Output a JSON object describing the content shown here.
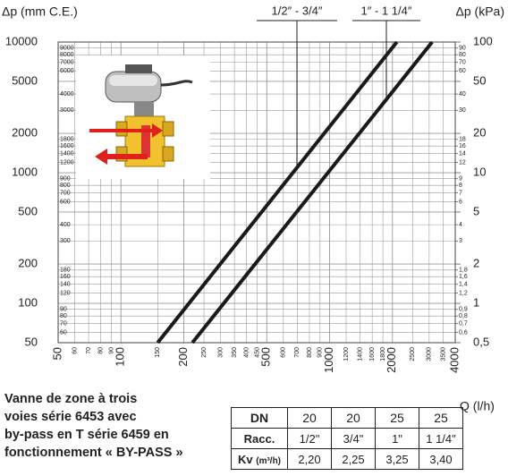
{
  "chart_data": {
    "type": "line",
    "ylabel": "Δp (mm C.E.)",
    "y2label": "Δp (kPa)",
    "xlabel": "Q (l/h)",
    "xscale": "log",
    "yscale": "log",
    "xlim": [
      50,
      4000
    ],
    "ylim": [
      50,
      10000
    ],
    "y2lim": [
      0.5,
      100
    ],
    "xticks": [
      50,
      100,
      200,
      500,
      1000,
      2000,
      4000
    ],
    "xticks_minor": [
      60,
      70,
      80,
      90,
      150,
      250,
      300,
      350,
      400,
      450,
      600,
      700,
      800,
      900,
      1200,
      1400,
      1600,
      1800,
      2500,
      3000,
      3500
    ],
    "yticks": [
      50,
      100,
      200,
      500,
      1000,
      2000,
      5000,
      10000
    ],
    "yticks_minor": [
      60,
      70,
      80,
      90,
      120,
      140,
      160,
      180,
      300,
      400,
      600,
      700,
      800,
      900,
      1200,
      1400,
      1600,
      1800,
      3000,
      4000,
      6000,
      7000,
      8000,
      9000
    ],
    "y2ticks": [
      {
        "value": 0.5,
        "label": "0,5"
      },
      1,
      2,
      5,
      10,
      20,
      50,
      100
    ],
    "y2ticks_minor": [
      {
        "value": 0.6,
        "label": "0,6"
      },
      {
        "value": 0.7,
        "label": "0,7"
      },
      {
        "value": 0.8,
        "label": "0,8"
      },
      {
        "value": 0.9,
        "label": "0,9"
      },
      {
        "value": 1.2,
        "label": "1,2"
      },
      {
        "value": 1.4,
        "label": "1,4"
      },
      {
        "value": 1.6,
        "label": "1,6"
      },
      {
        "value": 1.8,
        "label": "1,8"
      },
      3,
      4,
      6,
      7,
      8,
      9,
      12,
      14,
      16,
      18,
      30,
      40,
      60,
      70,
      80,
      90
    ],
    "grid": true,
    "series": [
      {
        "name": "1/2″ - 3/4″",
        "color": "#1a1a1a",
        "x": [
          150,
          2100
        ],
        "values": [
          50,
          10000
        ]
      },
      {
        "name": "1″ - 1 1/4″",
        "color": "#1a1a1a",
        "x": [
          220,
          3100
        ],
        "values": [
          50,
          10000
        ]
      }
    ]
  },
  "caption": [
    "Vanne de zone à trois",
    "voies série 6453 avec",
    "by-pass en T série 6459 en",
    "fonctionnement « BY-PASS »"
  ],
  "table": {
    "rows": [
      {
        "label": "DN",
        "cells": [
          20,
          20,
          25,
          25
        ]
      },
      {
        "label": "Racc.",
        "cells": [
          "1/2\"",
          "3/4\"",
          "1\"",
          "1 1/4\""
        ]
      },
      {
        "label": "Kv",
        "unit": "(m³/h)",
        "cells": [
          "2,20",
          "2,25",
          "3,25",
          "3,40"
        ]
      }
    ]
  }
}
